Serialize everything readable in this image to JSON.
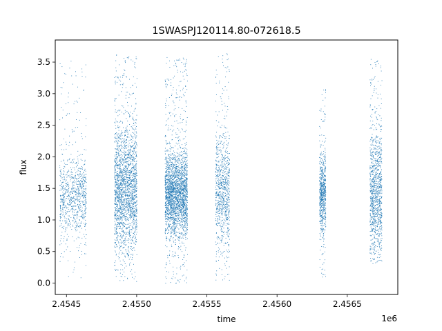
{
  "chart_data": {
    "type": "scatter",
    "title": "1SWASPJ120114.80-072618.5",
    "xlabel": "time",
    "ylabel": "flux",
    "x_offset_label": "1e6",
    "xlim": [
      2454420,
      2456860
    ],
    "ylim": [
      -0.18,
      3.85
    ],
    "x_ticks": [
      2454500,
      2455000,
      2455500,
      2456000,
      2456500
    ],
    "x_tick_labels": [
      "2.4545",
      "2.4550",
      "2.4555",
      "2.4560",
      "2.4565"
    ],
    "y_ticks": [
      0.0,
      0.5,
      1.0,
      1.5,
      2.0,
      2.5,
      3.0,
      3.5
    ],
    "y_tick_labels": [
      "0.0",
      "0.5",
      "1.0",
      "1.5",
      "2.0",
      "2.5",
      "3.0",
      "3.5"
    ],
    "grid": false,
    "legend": "none",
    "marker_color": "#1f77b4",
    "series": [
      {
        "clusters": [
          {
            "x_start": 2454450,
            "x_end": 2454640,
            "y_center": 1.35,
            "y_spread": 0.32,
            "y_min": 0.05,
            "y_max": 3.55,
            "density": 900
          },
          {
            "x_start": 2454840,
            "x_end": 2455000,
            "y_center": 1.5,
            "y_spread": 0.5,
            "y_min": 0.03,
            "y_max": 3.62,
            "density": 2200
          },
          {
            "x_start": 2455200,
            "x_end": 2455360,
            "y_center": 1.4,
            "y_spread": 0.33,
            "y_min": 0.0,
            "y_max": 3.58,
            "density": 2600
          },
          {
            "x_start": 2455560,
            "x_end": 2455660,
            "y_center": 1.45,
            "y_spread": 0.45,
            "y_min": 0.05,
            "y_max": 3.65,
            "density": 900
          },
          {
            "x_start": 2456300,
            "x_end": 2456345,
            "y_center": 1.4,
            "y_spread": 0.3,
            "y_min": 0.1,
            "y_max": 3.1,
            "density": 700
          },
          {
            "x_start": 2456660,
            "x_end": 2456745,
            "y_center": 1.4,
            "y_spread": 0.5,
            "y_min": 0.3,
            "y_max": 3.55,
            "density": 1100
          }
        ]
      }
    ]
  }
}
